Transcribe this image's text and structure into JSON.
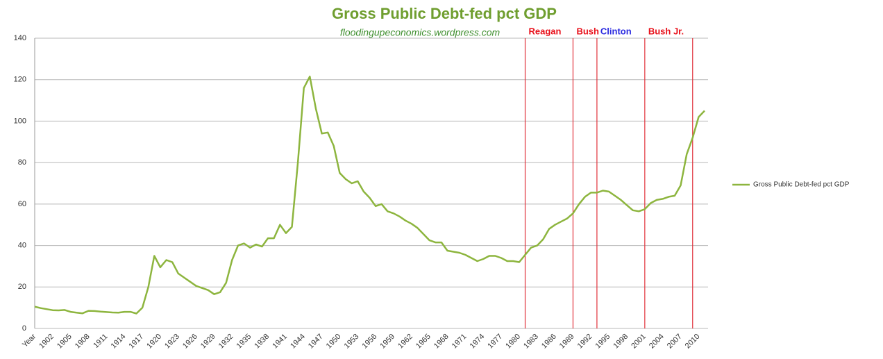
{
  "chart_data": {
    "type": "line",
    "title": "Gross Public Debt-fed pct GDP",
    "subtitle": "floodingupeconomics.wordpress.com",
    "categories": [
      "Year",
      null,
      null,
      "1902",
      null,
      null,
      "1905",
      null,
      null,
      "1908",
      null,
      null,
      "1911",
      null,
      null,
      "1914",
      null,
      null,
      "1917",
      null,
      null,
      "1920",
      null,
      null,
      "1923",
      null,
      null,
      "1926",
      null,
      null,
      "1929",
      null,
      null,
      "1932",
      null,
      null,
      "1935",
      null,
      null,
      "1938",
      null,
      null,
      "1941",
      null,
      null,
      "1944",
      null,
      null,
      "1947",
      null,
      null,
      "1950",
      null,
      null,
      "1953",
      null,
      null,
      "1956",
      null,
      null,
      "1959",
      null,
      null,
      "1962",
      null,
      null,
      "1965",
      null,
      null,
      "1968",
      null,
      null,
      "1971",
      null,
      null,
      "1974",
      null,
      null,
      "1977",
      null,
      null,
      "1980",
      null,
      null,
      "1983",
      null,
      null,
      "1986",
      null,
      null,
      "1989",
      null,
      null,
      "1992",
      null,
      null,
      "1995",
      null,
      null,
      "1998",
      null,
      null,
      "2001",
      null,
      null,
      "2004",
      null,
      null,
      "2007",
      null,
      null,
      "2010",
      null
    ],
    "series": [
      {
        "name": "Gross Public Debt-fed pct GDP",
        "color": "#8db53e",
        "values": [
          10.5,
          9.8,
          9.3,
          8.8,
          8.7,
          8.9,
          8,
          7.6,
          7.3,
          8.5,
          8.4,
          8.1,
          7.9,
          7.7,
          7.6,
          8,
          8,
          7.2,
          10,
          20,
          35,
          29.5,
          33,
          32,
          26.5,
          24.5,
          22.5,
          20.5,
          19.5,
          18.5,
          16.5,
          17.5,
          22,
          33,
          40,
          41,
          39,
          40.5,
          39.5,
          43.5,
          43.5,
          50,
          46,
          49,
          80,
          116,
          121.5,
          106,
          94,
          94.5,
          88,
          75,
          72,
          70,
          71,
          66,
          63,
          59,
          60,
          56.5,
          55.5,
          54,
          52,
          50.5,
          48.5,
          45.5,
          42.5,
          41.5,
          41.5,
          37.5,
          37,
          36.5,
          35.5,
          34,
          32.5,
          33.5,
          35,
          35,
          34,
          32.5,
          32.5,
          32,
          35.5,
          39,
          40,
          43,
          48,
          50,
          51.5,
          53,
          55.5,
          60,
          63.5,
          65.5,
          65.5,
          66.5,
          66,
          64,
          62,
          59.5,
          57,
          56.5,
          57.5,
          60.5,
          62,
          62.5,
          63.5,
          64,
          69,
          84,
          92,
          102,
          105
        ]
      }
    ],
    "ylim": [
      0,
      140
    ],
    "yticks": [
      0,
      20,
      40,
      60,
      80,
      100,
      120,
      140
    ],
    "grid": true,
    "legend": "right",
    "vlines": [
      82,
      90,
      94,
      102,
      110
    ],
    "vline_color": "#e0303a",
    "annotations": [
      {
        "text": "Reagan",
        "color": "#e8101a",
        "at": 82
      },
      {
        "text": "Bush",
        "color": "#e8101a",
        "at": 90
      },
      {
        "text": "Clinton",
        "color": "#2a2ae0",
        "at": 94
      },
      {
        "text": "Bush Jr.",
        "color": "#e8101a",
        "at": 102
      }
    ]
  }
}
